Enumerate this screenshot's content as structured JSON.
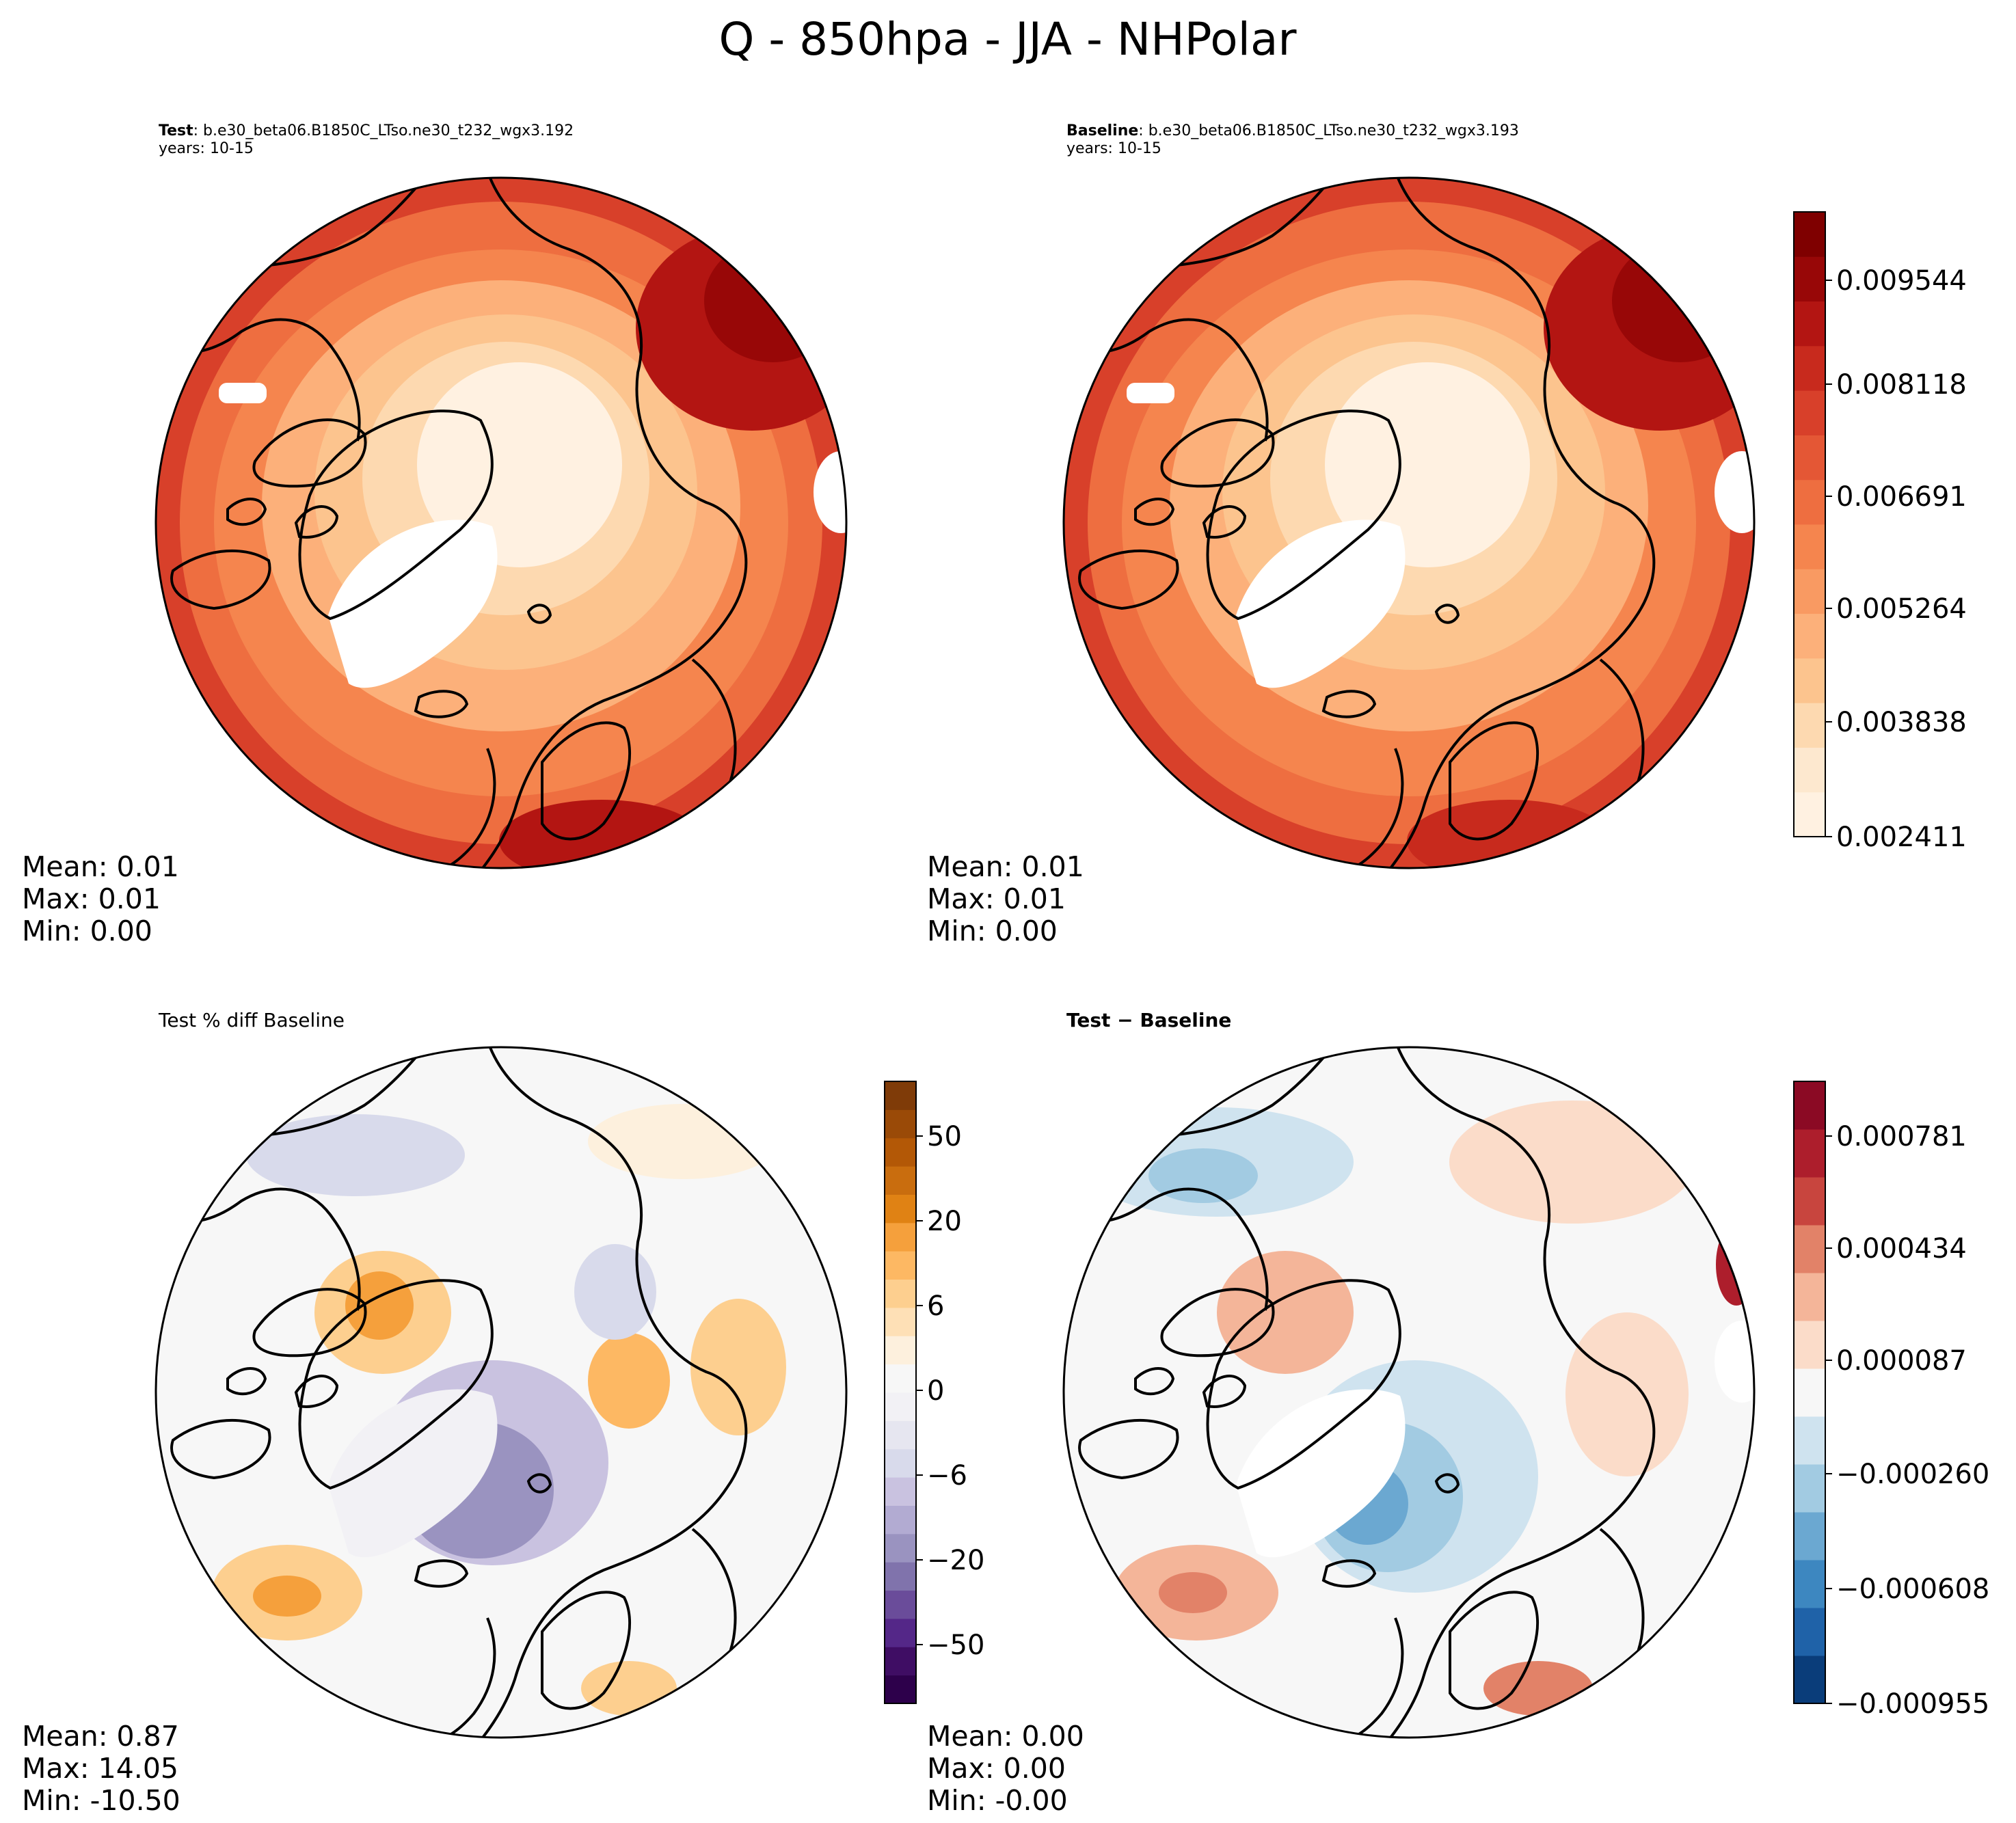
{
  "title": "Q - 850hpa - JJA - NHPolar",
  "chart_data": [
    {
      "type": "heatmap",
      "projection": "north polar stereographic",
      "title_bold": "Test",
      "title_rest": ": b.e30_beta06.B1850C_LTso.ne30_t232_wgx3.192",
      "subtitle": "years: 10-15",
      "stats": {
        "mean": "Mean:  0.01",
        "max": "Max:  0.01",
        "min": "Min:  0.00"
      },
      "colormap": "OrRd",
      "colorbar": null
    },
    {
      "type": "heatmap",
      "projection": "north polar stereographic",
      "title_bold": "Baseline",
      "title_rest": ": b.e30_beta06.B1850C_LTso.ne30_t232_wgx3.193",
      "subtitle": "years: 10-15",
      "stats": {
        "mean": "Mean:  0.01",
        "max": "Max:  0.01",
        "min": "Min:  0.00"
      },
      "colormap": "OrRd",
      "colorbar": {
        "range": [
          0.002411,
          0.010257
        ],
        "ticks": [
          "0.009544",
          "0.008118",
          "0.006691",
          "0.005264",
          "0.003838",
          "0.002411"
        ],
        "colors": [
          "#fff1e1",
          "#fde8cf",
          "#fdd9b0",
          "#fcc48e",
          "#fcb07a",
          "#f99a62",
          "#f5854e",
          "#ee6e40",
          "#e45735",
          "#d8402a",
          "#c82a1d",
          "#b31512",
          "#980707",
          "#7f0000"
        ]
      }
    },
    {
      "type": "heatmap",
      "projection": "north polar stereographic",
      "title_bold": "",
      "title_rest": "Test % diff Baseline",
      "subtitle": "",
      "stats": {
        "mean": "Mean:  0.87",
        "max": "Max: 14.05",
        "min": "Min: -10.50"
      },
      "colormap": "PuOr_r",
      "colorbar": {
        "ticks": [
          "50",
          "20",
          "6",
          "0",
          "−6",
          "−20",
          "−50"
        ],
        "colors": [
          "#2d004b",
          "#3f0d64",
          "#542788",
          "#6a4c9a",
          "#8073ac",
          "#9a93c0",
          "#b2abd2",
          "#c9c2e0",
          "#d8daeb",
          "#e6e6f0",
          "#f2f1f5",
          "#f7f7f7",
          "#fdf0dd",
          "#fee0b6",
          "#fdcf8f",
          "#fdb863",
          "#f5a03c",
          "#e08214",
          "#c96d0e",
          "#b35806",
          "#9a4a07",
          "#7f3b08"
        ]
      }
    },
    {
      "type": "heatmap",
      "projection": "north polar stereographic",
      "title_bold": "Test",
      "title_rest": " − Baseline",
      "subtitle": "",
      "stats": {
        "mean": "Mean:  0.00",
        "max": "Max:  0.00",
        "min": "Min: -0.00"
      },
      "colormap": "RdBu_r",
      "colorbar": {
        "range": [
          -0.000955,
          0.000955
        ],
        "ticks": [
          "0.000781",
          "0.000434",
          "0.000087",
          "−0.000260",
          "−0.000608",
          "−0.000955"
        ],
        "colors": [
          "#0a3d7a",
          "#1f62a8",
          "#3d87c0",
          "#6ba8d1",
          "#a2cbe2",
          "#cfe3ef",
          "#f7f7f7",
          "#fbdcc9",
          "#f4b599",
          "#e28268",
          "#c8453e",
          "#ad1e2c",
          "#8b0a24"
        ]
      }
    }
  ]
}
